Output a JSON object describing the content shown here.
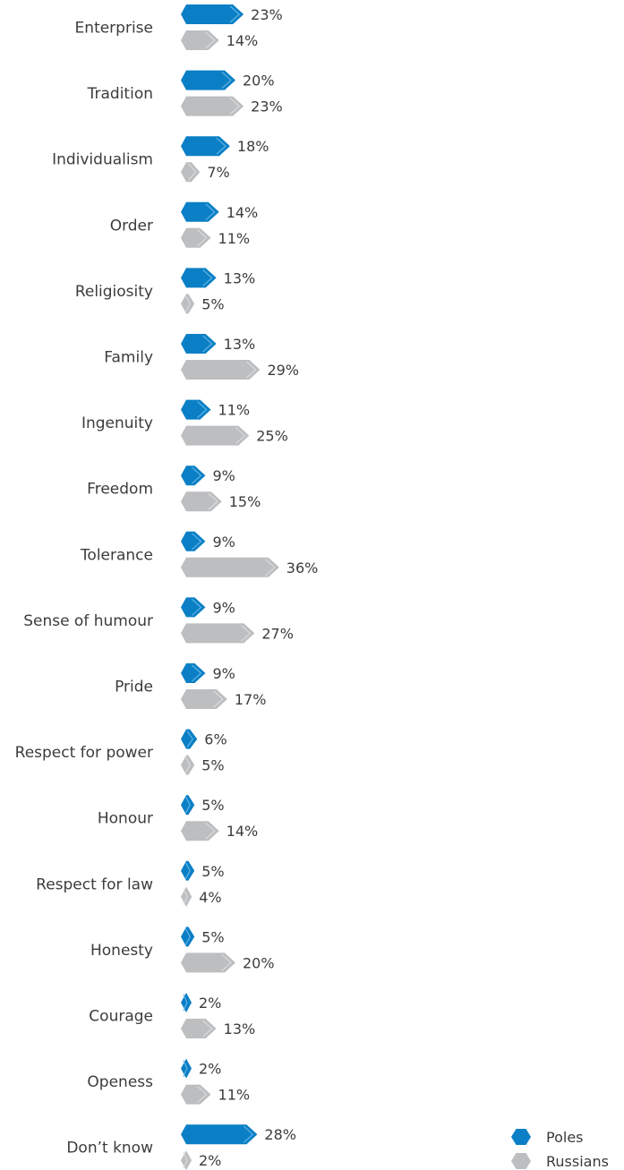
{
  "chart_data": {
    "type": "bar",
    "orientation": "horizontal",
    "categories": [
      "Enterprise",
      "Tradition",
      "Individualism",
      "Order",
      "Religiosity",
      "Family",
      "Ingenuity",
      "Freedom",
      "Tolerance",
      "Sense of humour",
      "Pride",
      "Respect for power",
      "Honour",
      "Respect for law",
      "Honesty",
      "Courage",
      "Openess",
      "Don’t know"
    ],
    "series": [
      {
        "name": "Poles",
        "values": [
          23,
          20,
          18,
          14,
          13,
          13,
          11,
          9,
          9,
          9,
          9,
          6,
          5,
          5,
          5,
          2,
          2,
          28
        ],
        "color": "#0a7fc5"
      },
      {
        "name": "Russians",
        "values": [
          14,
          23,
          7,
          11,
          5,
          29,
          25,
          15,
          36,
          27,
          17,
          5,
          14,
          4,
          20,
          13,
          11,
          2
        ],
        "color": "#bcbec0"
      }
    ],
    "value_suffix": "%",
    "legend_position": "bottom-right",
    "grid": false
  }
}
